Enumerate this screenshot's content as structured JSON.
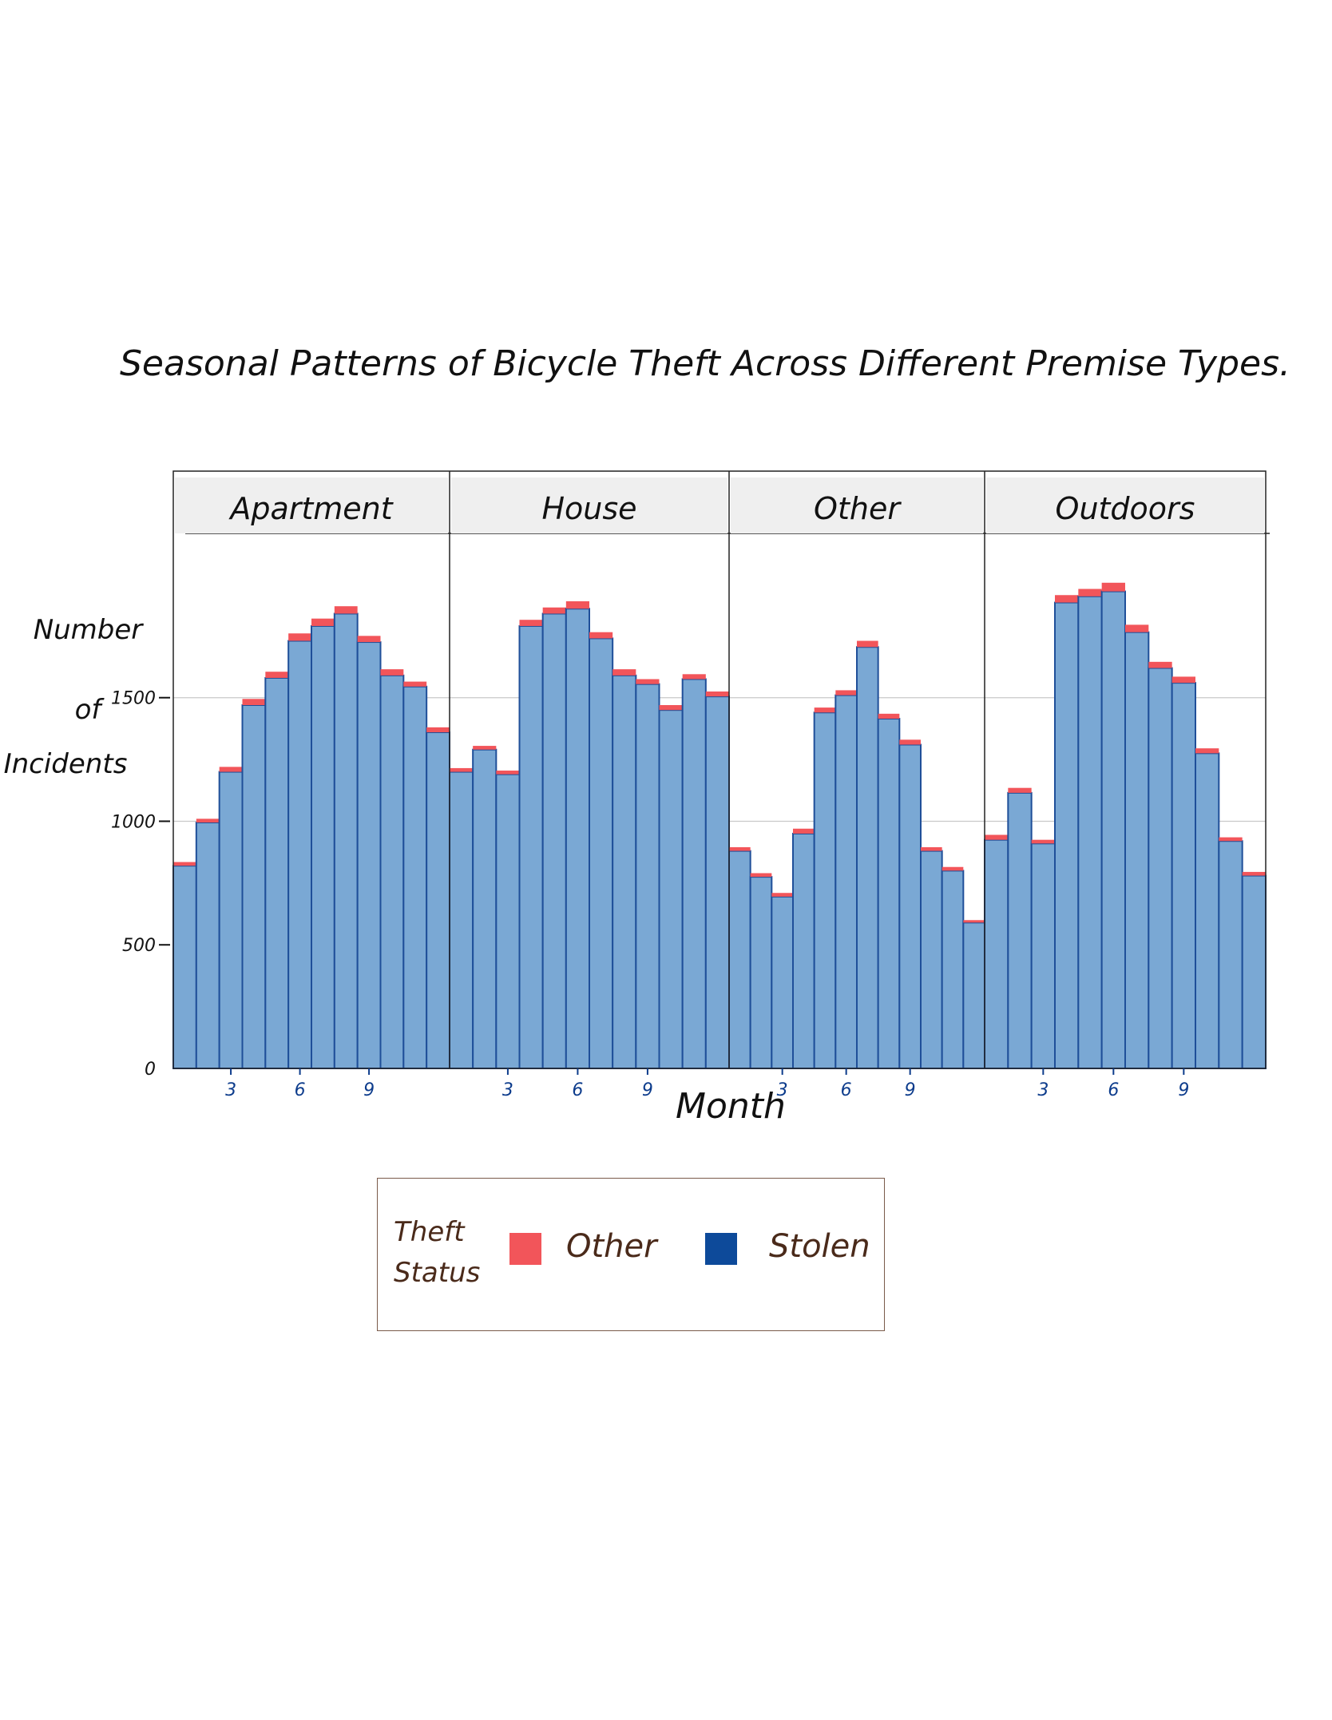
{
  "chart_data": {
    "type": "bar",
    "title": "Seasonal Patterns of Bicycle Theft Across Different Premise Types.",
    "xlabel": "Month",
    "ylabel": "Number of Incidents",
    "ylim": [
      0,
      2100
    ],
    "yticks": [
      0,
      500,
      1000,
      1500
    ],
    "ytick_labels": [
      "0",
      "500",
      "1000",
      "1500"
    ],
    "xticks": [
      3,
      6,
      9
    ],
    "xtick_labels": [
      "3",
      "6",
      "9"
    ],
    "months": [
      1,
      2,
      3,
      4,
      5,
      6,
      7,
      8,
      9,
      10,
      11,
      12
    ],
    "grid": true,
    "legend": {
      "title": "Theft Status",
      "position": "bottom",
      "items": [
        {
          "name": "Other",
          "color": "#f2555a"
        },
        {
          "name": "Stolen",
          "color": "#0d4a9a"
        }
      ]
    },
    "facets": [
      {
        "label": "Apartment",
        "series": [
          {
            "name": "Stolen",
            "values": [
              820,
              995,
              1200,
              1470,
              1580,
              1730,
              1790,
              1840,
              1725,
              1590,
              1545,
              1360
            ]
          },
          {
            "name": "Other",
            "values": [
              15,
              15,
              20,
              25,
              25,
              30,
              30,
              30,
              25,
              25,
              20,
              20
            ]
          }
        ]
      },
      {
        "label": "House",
        "series": [
          {
            "name": "Stolen",
            "values": [
              1200,
              1290,
              1190,
              1790,
              1840,
              1860,
              1740,
              1590,
              1555,
              1450,
              1575,
              1505
            ]
          },
          {
            "name": "Other",
            "values": [
              15,
              15,
              15,
              25,
              25,
              30,
              25,
              25,
              20,
              20,
              20,
              20
            ]
          }
        ]
      },
      {
        "label": "Other",
        "series": [
          {
            "name": "Stolen",
            "values": [
              880,
              775,
              695,
              950,
              1440,
              1510,
              1705,
              1415,
              1310,
              880,
              800,
              590
            ]
          },
          {
            "name": "Other",
            "values": [
              15,
              15,
              15,
              20,
              20,
              20,
              25,
              20,
              20,
              15,
              15,
              10
            ]
          }
        ]
      },
      {
        "label": "Outdoors",
        "series": [
          {
            "name": "Stolen",
            "values": [
              925,
              1115,
              910,
              1885,
              1910,
              1930,
              1765,
              1620,
              1560,
              1275,
              920,
              780
            ]
          },
          {
            "name": "Other",
            "values": [
              20,
              20,
              15,
              30,
              30,
              35,
              30,
              25,
              25,
              20,
              15,
              15
            ]
          }
        ]
      }
    ]
  }
}
